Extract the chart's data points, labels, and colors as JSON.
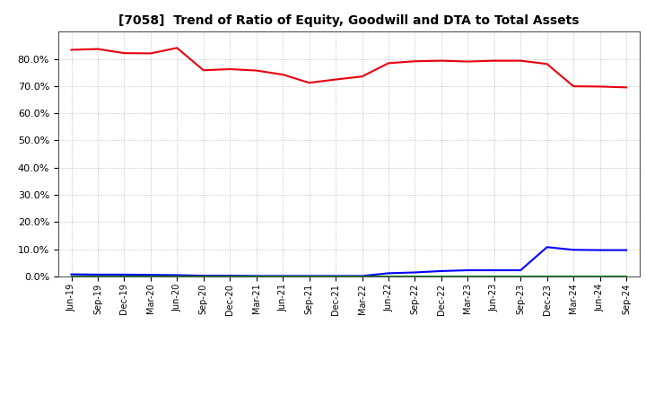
{
  "title": "[7058]  Trend of Ratio of Equity, Goodwill and DTA to Total Assets",
  "x_labels": [
    "Jun-19",
    "Sep-19",
    "Dec-19",
    "Mar-20",
    "Jun-20",
    "Sep-20",
    "Dec-20",
    "Mar-21",
    "Jun-21",
    "Sep-21",
    "Dec-21",
    "Mar-22",
    "Jun-22",
    "Sep-22",
    "Dec-22",
    "Mar-23",
    "Jun-23",
    "Sep-23",
    "Dec-23",
    "Mar-24",
    "Jun-24",
    "Sep-24"
  ],
  "equity": [
    0.833,
    0.836,
    0.821,
    0.82,
    0.84,
    0.758,
    0.762,
    0.757,
    0.742,
    0.712,
    0.724,
    0.735,
    0.784,
    0.791,
    0.793,
    0.79,
    0.793,
    0.793,
    0.781,
    0.699,
    0.698,
    0.695
  ],
  "goodwill": [
    0.008,
    0.007,
    0.007,
    0.006,
    0.005,
    0.003,
    0.003,
    0.002,
    0.002,
    0.002,
    0.002,
    0.002,
    0.012,
    0.015,
    0.02,
    0.023,
    0.023,
    0.023,
    0.108,
    0.098,
    0.097,
    0.097
  ],
  "dta": [
    0.0,
    0.0,
    0.0,
    0.0,
    0.0,
    0.0,
    0.0,
    0.0,
    0.0,
    0.0,
    0.0,
    0.0,
    0.0,
    0.0,
    0.0,
    0.0,
    0.0,
    0.0,
    0.0,
    0.0,
    0.0,
    0.0
  ],
  "equity_color": "#e8000d",
  "goodwill_color": "#0000ff",
  "dta_color": "#008000",
  "ylim": [
    0.0,
    0.9
  ],
  "yticks": [
    0.0,
    0.1,
    0.2,
    0.3,
    0.4,
    0.5,
    0.6,
    0.7,
    0.8
  ],
  "background_color": "#ffffff",
  "grid_color": "#bbbbbb"
}
